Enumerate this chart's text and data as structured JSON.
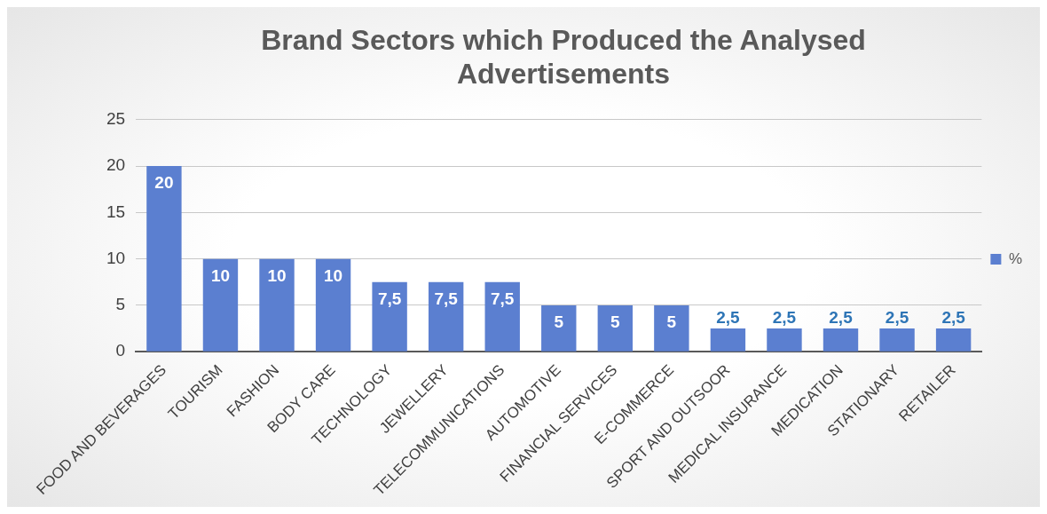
{
  "chart_data": {
    "type": "bar",
    "title": "Brand Sectors which Produced the Analysed Advertisements",
    "categories": [
      "FOOD AND BEVERAGES",
      "TOURISM",
      "FASHION",
      "BODY CARE",
      "TECHNOLOGY",
      "JEWELLERY",
      "TELECOMMUNICATIONS",
      "AUTOMOTIVE",
      "FINANCIAL SERVICES",
      "E-COMMERCE",
      "SPORT AND OUTSOOR",
      "MEDICAL INSURANCE",
      "MEDICATION",
      "STATIONARY",
      "RETAILER"
    ],
    "series": [
      {
        "name": "%",
        "color": "#5b7fd0",
        "values": [
          20,
          10,
          10,
          10,
          7.5,
          7.5,
          7.5,
          5,
          5,
          5,
          2.5,
          2.5,
          2.5,
          2.5,
          2.5
        ],
        "value_labels": [
          "20",
          "10",
          "10",
          "10",
          "7,5",
          "7,5",
          "7,5",
          "5",
          "5",
          "5",
          "2,5",
          "2,5",
          "2,5",
          "2,5",
          "2,5"
        ]
      }
    ],
    "ylim": [
      0,
      25
    ],
    "yticks": [
      0,
      5,
      10,
      15,
      20,
      25
    ],
    "grid": "y",
    "legend": "right"
  }
}
